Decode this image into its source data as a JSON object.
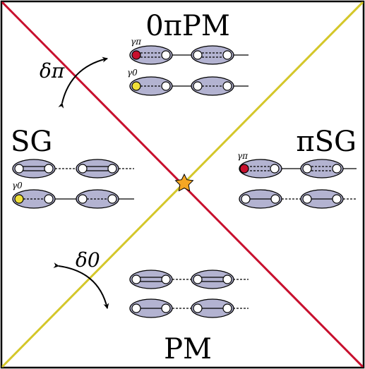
{
  "phases": {
    "top": "0πPM",
    "left": "SG",
    "right": "πSG",
    "bottom": "PM"
  },
  "gamma_labels": {
    "gamma_pi": "γπ",
    "gamma_0": "γ0"
  },
  "arrow_labels": {
    "delta_pi": "δπ",
    "delta_0": "δ0"
  },
  "colors": {
    "red_line": "#c8102e",
    "yellow_line": "#d4c72a",
    "ellipse_fill": "#b3b3d1",
    "red_dot": "#c8102e",
    "yellow_dot": "#f0e03a",
    "star": "#f5a623",
    "frame": "#000000"
  },
  "icons": {
    "critical_point": "star-icon"
  }
}
